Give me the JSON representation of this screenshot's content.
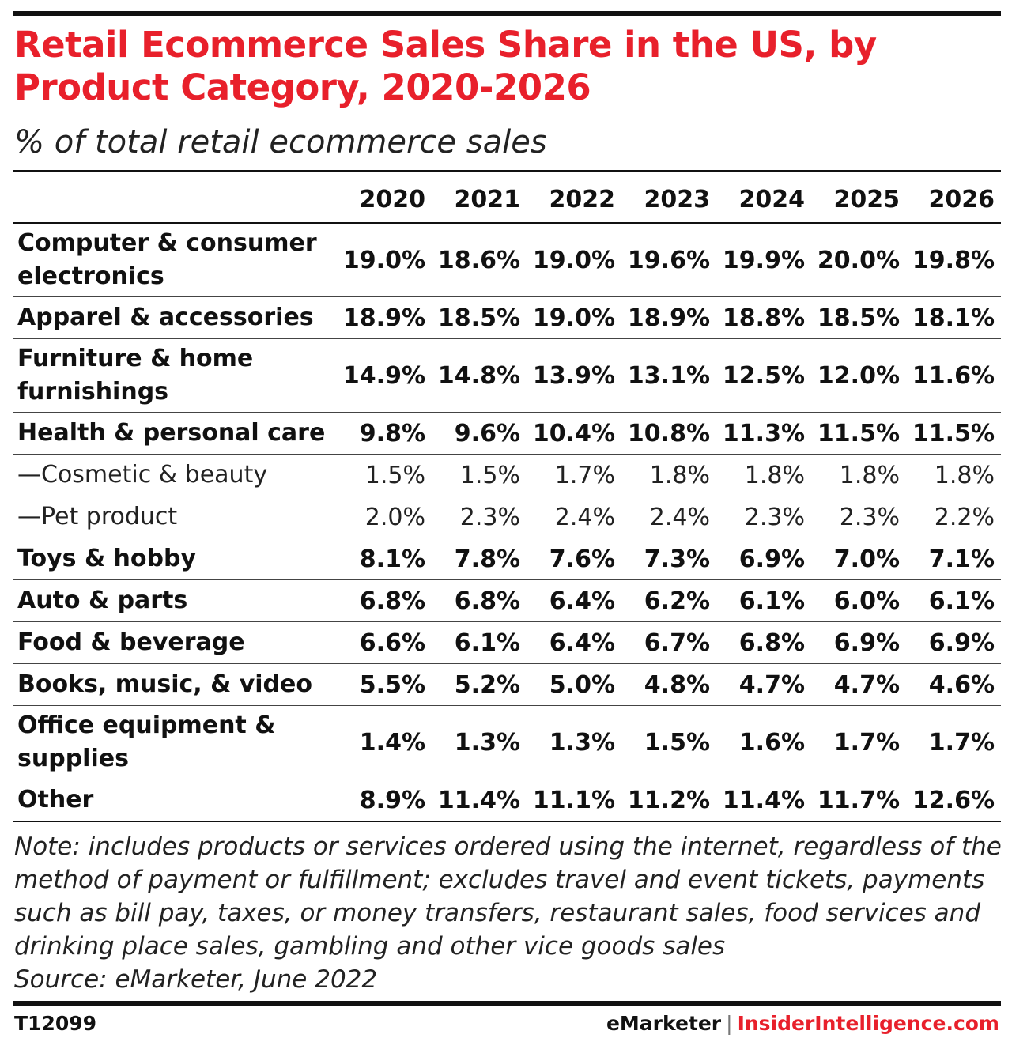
{
  "header": {
    "title": "Retail Ecommerce Sales Share in the US, by Product Category, 2020-2026",
    "subtitle": "% of total retail ecommerce sales"
  },
  "chart_data": {
    "type": "table",
    "title": "Retail Ecommerce Sales Share in the US, by Product Category, 2020-2026",
    "subtitle": "% of total retail ecommerce sales",
    "columns": [
      "2020",
      "2021",
      "2022",
      "2023",
      "2024",
      "2025",
      "2026"
    ],
    "rows": [
      {
        "label": "Computer & consumer electronics",
        "style": "bold",
        "values": [
          "19.0%",
          "18.6%",
          "19.0%",
          "19.6%",
          "19.9%",
          "20.0%",
          "19.8%"
        ]
      },
      {
        "label": "Apparel & accessories",
        "style": "bold",
        "values": [
          "18.9%",
          "18.5%",
          "19.0%",
          "18.9%",
          "18.8%",
          "18.5%",
          "18.1%"
        ]
      },
      {
        "label": "Furniture & home furnishings",
        "style": "bold",
        "values": [
          "14.9%",
          "14.8%",
          "13.9%",
          "13.1%",
          "12.5%",
          "12.0%",
          "11.6%"
        ]
      },
      {
        "label": "Health & personal care",
        "style": "bold",
        "values": [
          "9.8%",
          "9.6%",
          "10.4%",
          "10.8%",
          "11.3%",
          "11.5%",
          "11.5%"
        ]
      },
      {
        "label": "—Cosmetic & beauty",
        "style": "sub",
        "values": [
          "1.5%",
          "1.5%",
          "1.7%",
          "1.8%",
          "1.8%",
          "1.8%",
          "1.8%"
        ]
      },
      {
        "label": "—Pet product",
        "style": "sub",
        "values": [
          "2.0%",
          "2.3%",
          "2.4%",
          "2.4%",
          "2.3%",
          "2.3%",
          "2.2%"
        ]
      },
      {
        "label": "Toys & hobby",
        "style": "bold",
        "values": [
          "8.1%",
          "7.8%",
          "7.6%",
          "7.3%",
          "6.9%",
          "7.0%",
          "7.1%"
        ]
      },
      {
        "label": "Auto & parts",
        "style": "bold",
        "values": [
          "6.8%",
          "6.8%",
          "6.4%",
          "6.2%",
          "6.1%",
          "6.0%",
          "6.1%"
        ]
      },
      {
        "label": "Food & beverage",
        "style": "bold",
        "values": [
          "6.6%",
          "6.1%",
          "6.4%",
          "6.7%",
          "6.8%",
          "6.9%",
          "6.9%"
        ]
      },
      {
        "label": "Books, music, & video",
        "style": "bold",
        "values": [
          "5.5%",
          "5.2%",
          "5.0%",
          "4.8%",
          "4.7%",
          "4.7%",
          "4.6%"
        ]
      },
      {
        "label": "Office equipment & supplies",
        "style": "bold",
        "values": [
          "1.4%",
          "1.3%",
          "1.3%",
          "1.5%",
          "1.6%",
          "1.7%",
          "1.7%"
        ]
      },
      {
        "label": "Other",
        "style": "bold",
        "values": [
          "8.9%",
          "11.4%",
          "11.1%",
          "11.2%",
          "11.4%",
          "11.7%",
          "12.6%"
        ]
      }
    ]
  },
  "notes": {
    "note": "Note: includes products or services ordered using the internet, regardless of the method of payment or fulfillment; excludes travel and event tickets, payments such as bill pay, taxes, or money transfers, restaurant sales, food services and drinking place sales, gambling and other vice goods sales",
    "source": "Source: eMarketer, June 2022"
  },
  "footer": {
    "chart_id": "T12099",
    "brand_primary": "eMarketer",
    "separator": "|",
    "brand_secondary": "InsiderIntelligence.com"
  },
  "colors": {
    "accent": "#e8202b",
    "text": "#111111",
    "rule": "#111111"
  }
}
